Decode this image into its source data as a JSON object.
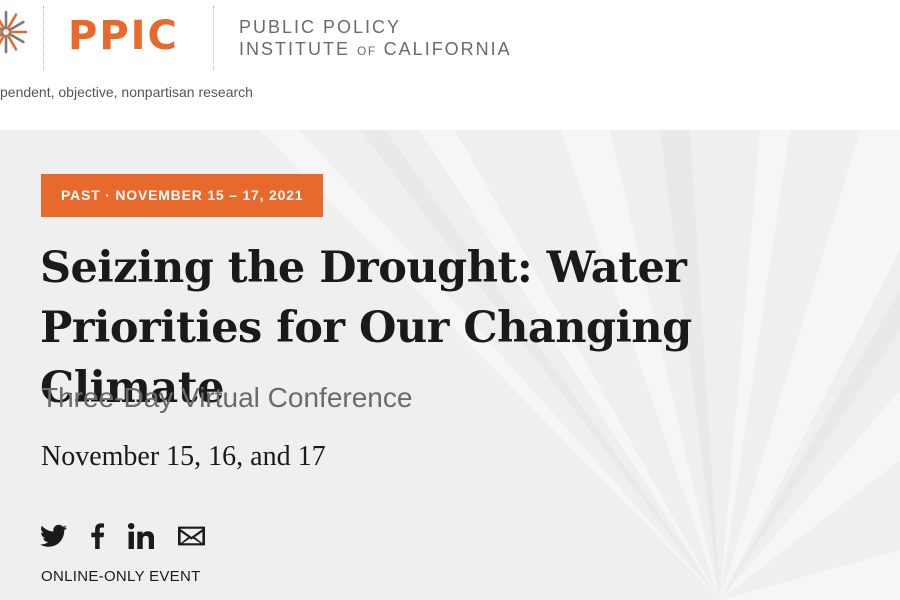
{
  "header": {
    "logo_text": "PPIC",
    "org_line1": "PUBLIC POLICY",
    "org_line2_a": "INSTITUTE ",
    "org_line2_of": "OF",
    "org_line2_b": " CALIFORNIA",
    "tagline": "pendent, objective, nonpartisan research"
  },
  "event": {
    "badge": "PAST · NOVEMBER 15 – 17, 2021",
    "title": "Seizing the Drought: Water Priorities for Our Changing Climate",
    "subtitle": "Three-Day Virtual Conference",
    "dates": "November 15, 16, and 17",
    "event_type": "ONLINE-ONLY EVENT"
  },
  "share": {
    "icons": [
      "twitter-icon",
      "facebook-icon",
      "linkedin-icon",
      "email-icon"
    ]
  },
  "colors": {
    "brand_orange": "#e8692c",
    "hero_background": "#efefef",
    "text_dark": "#1a1a1a",
    "text_gray": "#6b6b6b"
  }
}
